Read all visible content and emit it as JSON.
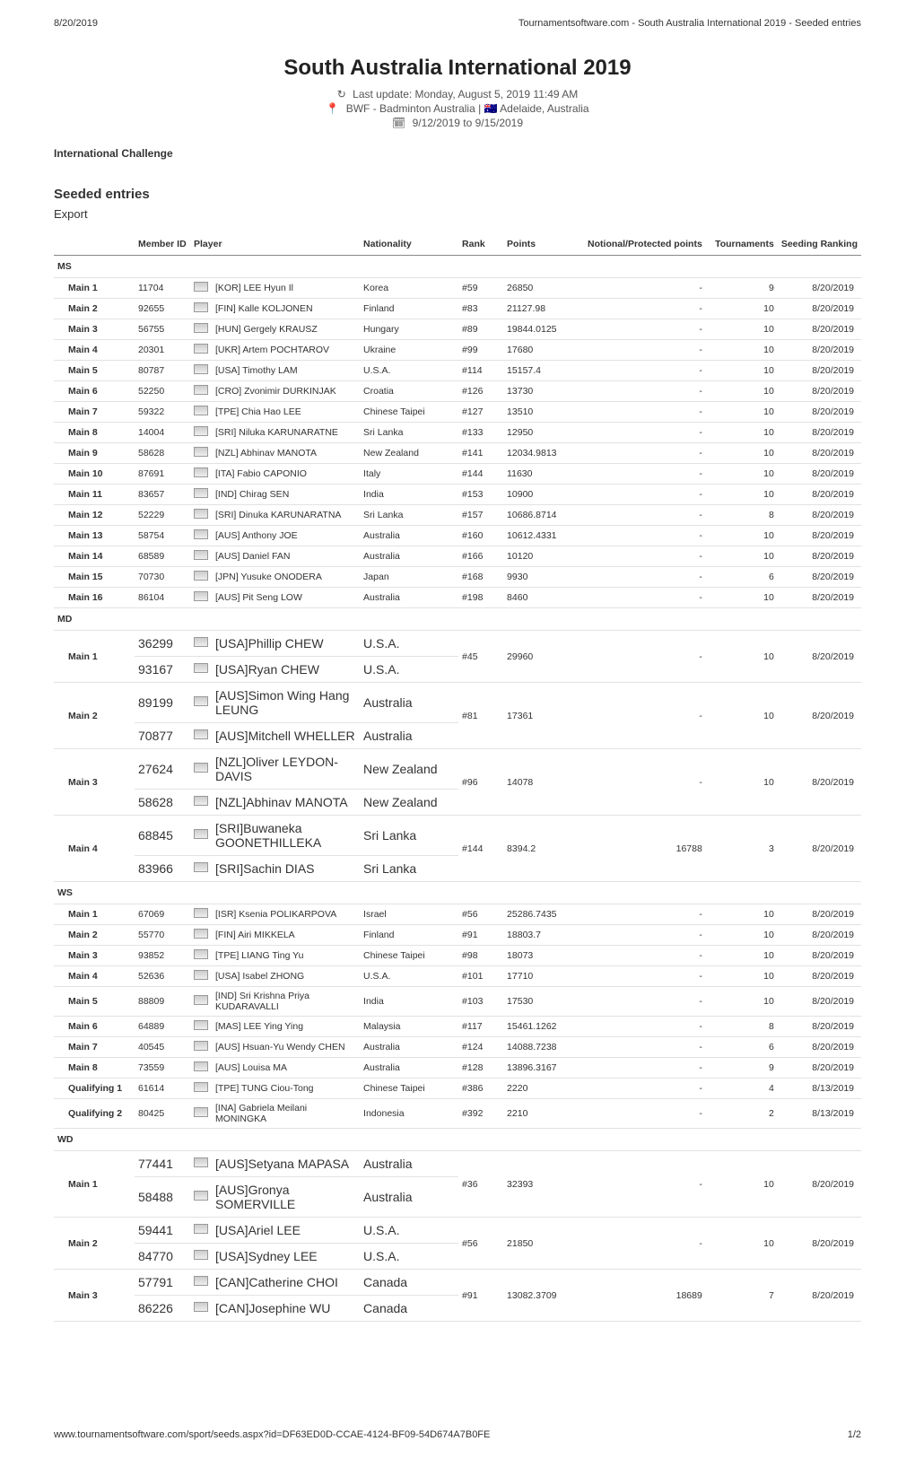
{
  "header": {
    "date": "8/20/2019",
    "breadcrumb": "Tournamentsoftware.com - South Australia International 2019 - Seeded entries"
  },
  "title": "South Australia International 2019",
  "subtitle": {
    "last_update": "Last update: Monday, August 5, 2019 11:49 AM",
    "location_line": "BWF - Badminton Australia | 🇦🇺 Adelaide, Australia",
    "date_range": "9/12/2019 to 9/15/2019",
    "refresh_icon": "↻",
    "pin_icon": "📍",
    "cal_icon": "🗓"
  },
  "level": "International Challenge",
  "section_title": "Seeded entries",
  "export_label": "Export",
  "columns": {
    "pos": "",
    "member": "Member ID",
    "player": "Player",
    "nat": "Nationality",
    "rank": "Rank",
    "points": "Points",
    "np": "Notional/Protected points",
    "tour": "Tournaments",
    "seedrank": "Seeding Ranking"
  },
  "groups": {
    "ms": "MS",
    "md": "MD",
    "ws": "WS",
    "wd": "WD"
  },
  "ms": [
    {
      "pos": "Main 1",
      "member": "11704",
      "player": "[KOR] LEE Hyun Il",
      "nat": "Korea",
      "rank": "#59",
      "points": "26850",
      "np": "-",
      "tour": "9",
      "seed": "8/20/2019"
    },
    {
      "pos": "Main 2",
      "member": "92655",
      "player": "[FIN] Kalle KOLJONEN",
      "nat": "Finland",
      "rank": "#83",
      "points": "21127.98",
      "np": "-",
      "tour": "10",
      "seed": "8/20/2019"
    },
    {
      "pos": "Main 3",
      "member": "56755",
      "player": "[HUN] Gergely KRAUSZ",
      "nat": "Hungary",
      "rank": "#89",
      "points": "19844.0125",
      "np": "-",
      "tour": "10",
      "seed": "8/20/2019"
    },
    {
      "pos": "Main 4",
      "member": "20301",
      "player": "[UKR] Artem POCHTAROV",
      "nat": "Ukraine",
      "rank": "#99",
      "points": "17680",
      "np": "-",
      "tour": "10",
      "seed": "8/20/2019"
    },
    {
      "pos": "Main 5",
      "member": "80787",
      "player": "[USA] Timothy LAM",
      "nat": "U.S.A.",
      "rank": "#114",
      "points": "15157.4",
      "np": "-",
      "tour": "10",
      "seed": "8/20/2019"
    },
    {
      "pos": "Main 6",
      "member": "52250",
      "player": "[CRO] Zvonimir DURKINJAK",
      "nat": "Croatia",
      "rank": "#126",
      "points": "13730",
      "np": "-",
      "tour": "10",
      "seed": "8/20/2019"
    },
    {
      "pos": "Main 7",
      "member": "59322",
      "player": "[TPE] Chia Hao LEE",
      "nat": "Chinese Taipei",
      "rank": "#127",
      "points": "13510",
      "np": "-",
      "tour": "10",
      "seed": "8/20/2019"
    },
    {
      "pos": "Main 8",
      "member": "14004",
      "player": "[SRI] Niluka KARUNARATNE",
      "nat": "Sri Lanka",
      "rank": "#133",
      "points": "12950",
      "np": "-",
      "tour": "10",
      "seed": "8/20/2019"
    },
    {
      "pos": "Main 9",
      "member": "58628",
      "player": "[NZL] Abhinav MANOTA",
      "nat": "New Zealand",
      "rank": "#141",
      "points": "12034.9813",
      "np": "-",
      "tour": "10",
      "seed": "8/20/2019"
    },
    {
      "pos": "Main 10",
      "member": "87691",
      "player": "[ITA] Fabio CAPONIO",
      "nat": "Italy",
      "rank": "#144",
      "points": "11630",
      "np": "-",
      "tour": "10",
      "seed": "8/20/2019"
    },
    {
      "pos": "Main 11",
      "member": "83657",
      "player": "[IND] Chirag SEN",
      "nat": "India",
      "rank": "#153",
      "points": "10900",
      "np": "-",
      "tour": "10",
      "seed": "8/20/2019"
    },
    {
      "pos": "Main 12",
      "member": "52229",
      "player": "[SRI] Dinuka KARUNARATNA",
      "nat": "Sri Lanka",
      "rank": "#157",
      "points": "10686.8714",
      "np": "-",
      "tour": "8",
      "seed": "8/20/2019"
    },
    {
      "pos": "Main 13",
      "member": "58754",
      "player": "[AUS] Anthony JOE",
      "nat": "Australia",
      "rank": "#160",
      "points": "10612.4331",
      "np": "-",
      "tour": "10",
      "seed": "8/20/2019"
    },
    {
      "pos": "Main 14",
      "member": "68589",
      "player": "[AUS] Daniel FAN",
      "nat": "Australia",
      "rank": "#166",
      "points": "10120",
      "np": "-",
      "tour": "10",
      "seed": "8/20/2019"
    },
    {
      "pos": "Main 15",
      "member": "70730",
      "player": "[JPN] Yusuke ONODERA",
      "nat": "Japan",
      "rank": "#168",
      "points": "9930",
      "np": "-",
      "tour": "6",
      "seed": "8/20/2019"
    },
    {
      "pos": "Main 16",
      "member": "86104",
      "player": "[AUS] Pit Seng LOW",
      "nat": "Australia",
      "rank": "#198",
      "points": "8460",
      "np": "-",
      "tour": "10",
      "seed": "8/20/2019"
    }
  ],
  "md": [
    {
      "pos": "Main 1",
      "member1": "36299",
      "player1": "[USA]Phillip CHEW",
      "nat1": "U.S.A.",
      "member2": "93167",
      "player2": "[USA]Ryan CHEW",
      "nat2": "U.S.A.",
      "rank": "#45",
      "points": "29960",
      "np": "-",
      "tour": "10",
      "seed": "8/20/2019"
    },
    {
      "pos": "Main 2",
      "member1": "89199",
      "player1": "[AUS]Simon Wing Hang LEUNG",
      "nat1": "Australia",
      "member2": "70877",
      "player2": "[AUS]Mitchell WHELLER",
      "nat2": "Australia",
      "rank": "#81",
      "points": "17361",
      "np": "-",
      "tour": "10",
      "seed": "8/20/2019"
    },
    {
      "pos": "Main 3",
      "member1": "27624",
      "player1": "[NZL]Oliver LEYDON-DAVIS",
      "nat1": "New Zealand",
      "member2": "58628",
      "player2": "[NZL]Abhinav MANOTA",
      "nat2": "New Zealand",
      "rank": "#96",
      "points": "14078",
      "np": "-",
      "tour": "10",
      "seed": "8/20/2019"
    },
    {
      "pos": "Main 4",
      "member1": "68845",
      "player1": "[SRI]Buwaneka GOONETHILLEKA",
      "nat1": "Sri Lanka",
      "member2": "83966",
      "player2": "[SRI]Sachin DIAS",
      "nat2": "Sri Lanka",
      "rank": "#144",
      "points": "8394.2",
      "np": "16788",
      "tour": "3",
      "seed": "8/20/2019"
    }
  ],
  "ws": [
    {
      "pos": "Main 1",
      "member": "67069",
      "player": "[ISR] Ksenia POLIKARPOVA",
      "nat": "Israel",
      "rank": "#56",
      "points": "25286.7435",
      "np": "-",
      "tour": "10",
      "seed": "8/20/2019"
    },
    {
      "pos": "Main 2",
      "member": "55770",
      "player": "[FIN] Airi MIKKELA",
      "nat": "Finland",
      "rank": "#91",
      "points": "18803.7",
      "np": "-",
      "tour": "10",
      "seed": "8/20/2019"
    },
    {
      "pos": "Main 3",
      "member": "93852",
      "player": "[TPE] LIANG Ting Yu",
      "nat": "Chinese Taipei",
      "rank": "#98",
      "points": "18073",
      "np": "-",
      "tour": "10",
      "seed": "8/20/2019"
    },
    {
      "pos": "Main 4",
      "member": "52636",
      "player": "[USA] Isabel ZHONG",
      "nat": "U.S.A.",
      "rank": "#101",
      "points": "17710",
      "np": "-",
      "tour": "10",
      "seed": "8/20/2019"
    },
    {
      "pos": "Main 5",
      "member": "88809",
      "player": "[IND] Sri Krishna Priya KUDARAVALLI",
      "nat": "India",
      "rank": "#103",
      "points": "17530",
      "np": "-",
      "tour": "10",
      "seed": "8/20/2019"
    },
    {
      "pos": "Main 6",
      "member": "64889",
      "player": "[MAS] LEE Ying Ying",
      "nat": "Malaysia",
      "rank": "#117",
      "points": "15461.1262",
      "np": "-",
      "tour": "8",
      "seed": "8/20/2019"
    },
    {
      "pos": "Main 7",
      "member": "40545",
      "player": "[AUS] Hsuan-Yu Wendy CHEN",
      "nat": "Australia",
      "rank": "#124",
      "points": "14088.7238",
      "np": "-",
      "tour": "6",
      "seed": "8/20/2019"
    },
    {
      "pos": "Main 8",
      "member": "73559",
      "player": "[AUS] Louisa MA",
      "nat": "Australia",
      "rank": "#128",
      "points": "13896.3167",
      "np": "-",
      "tour": "9",
      "seed": "8/20/2019"
    },
    {
      "pos": "Qualifying 1",
      "member": "61614",
      "player": "[TPE] TUNG Ciou-Tong",
      "nat": "Chinese Taipei",
      "rank": "#386",
      "points": "2220",
      "np": "-",
      "tour": "4",
      "seed": "8/13/2019"
    },
    {
      "pos": "Qualifying 2",
      "member": "80425",
      "player": "[INA] Gabriela Meilani MONINGKA",
      "nat": "Indonesia",
      "rank": "#392",
      "points": "2210",
      "np": "-",
      "tour": "2",
      "seed": "8/13/2019"
    }
  ],
  "wd": [
    {
      "pos": "Main 1",
      "member1": "77441",
      "player1": "[AUS]Setyana MAPASA",
      "nat1": "Australia",
      "member2": "58488",
      "player2": "[AUS]Gronya SOMERVILLE",
      "nat2": "Australia",
      "rank": "#36",
      "points": "32393",
      "np": "-",
      "tour": "10",
      "seed": "8/20/2019"
    },
    {
      "pos": "Main 2",
      "member1": "59441",
      "player1": "[USA]Ariel LEE",
      "nat1": "U.S.A.",
      "member2": "84770",
      "player2": "[USA]Sydney LEE",
      "nat2": "U.S.A.",
      "rank": "#56",
      "points": "21850",
      "np": "-",
      "tour": "10",
      "seed": "8/20/2019"
    },
    {
      "pos": "Main 3",
      "member1": "57791",
      "player1": "[CAN]Catherine CHOI",
      "nat1": "Canada",
      "member2": "86226",
      "player2": "[CAN]Josephine WU",
      "nat2": "Canada",
      "rank": "#91",
      "points": "13082.3709",
      "np": "18689",
      "tour": "7",
      "seed": "8/20/2019"
    }
  ],
  "footer": {
    "url": "www.tournamentsoftware.com/sport/seeds.aspx?id=DF63ED0D-CCAE-4124-BF09-54D674A7B0FE",
    "page": "1/2"
  }
}
